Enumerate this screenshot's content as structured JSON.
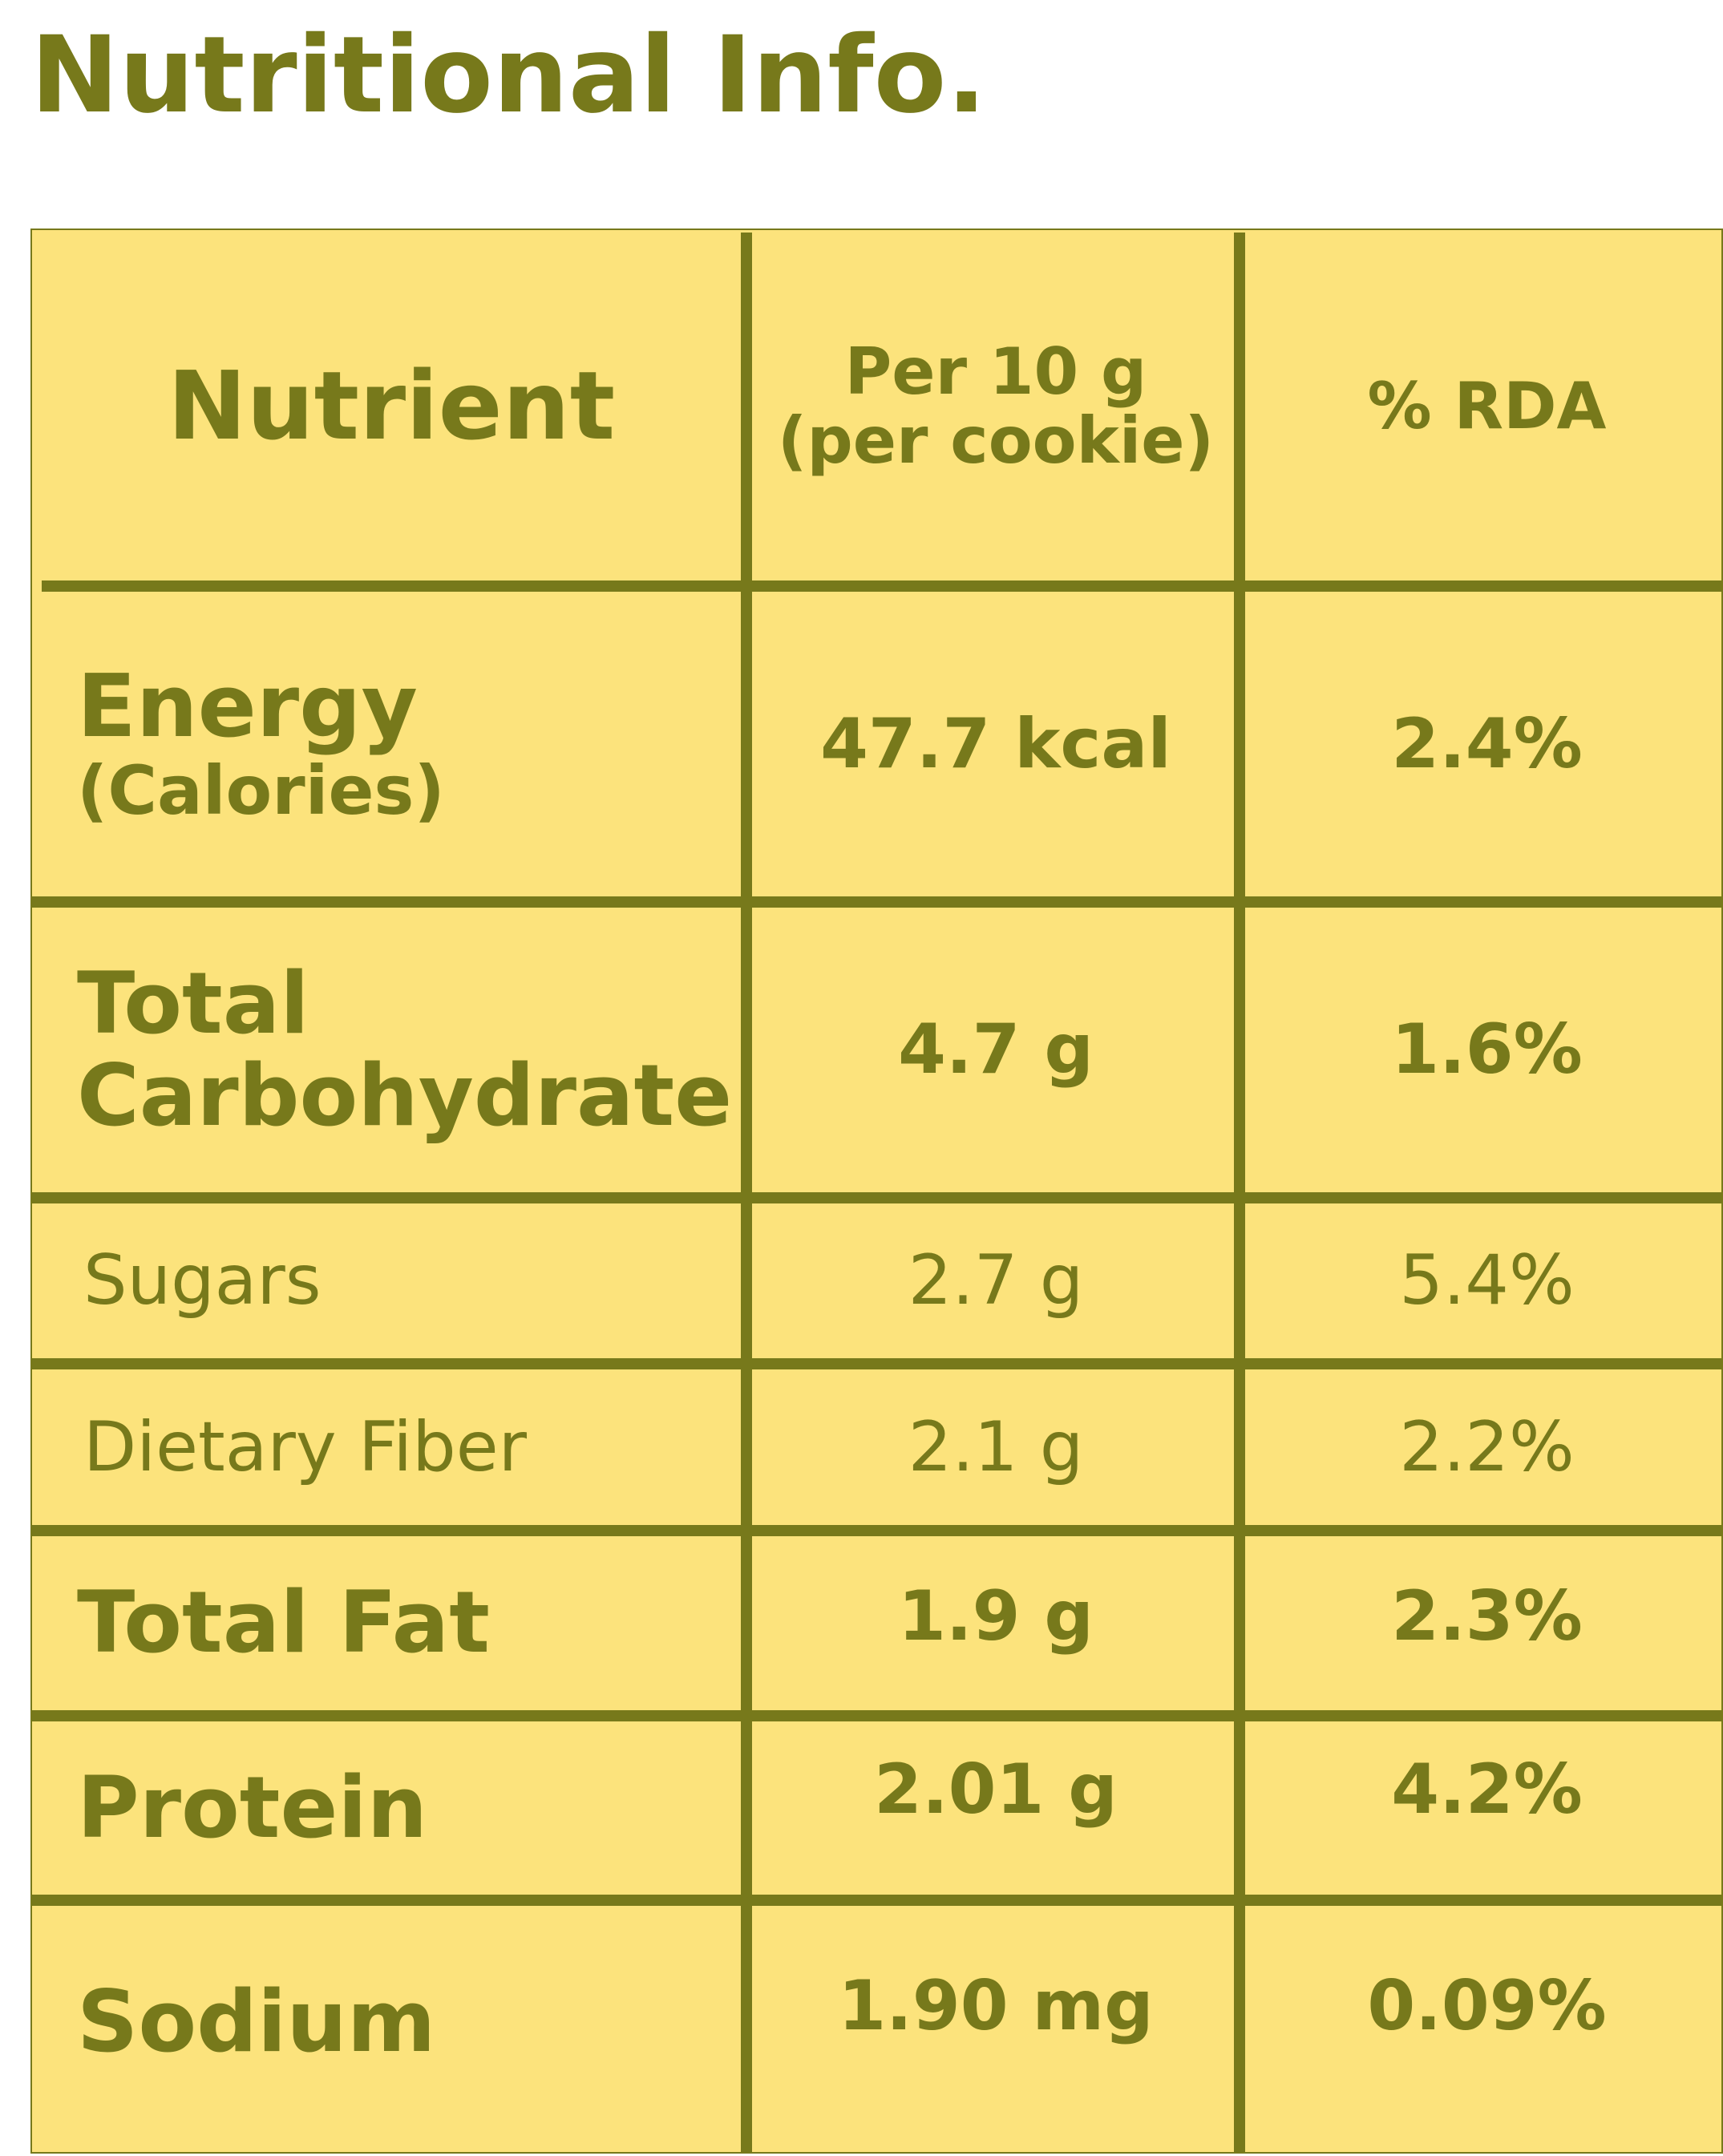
{
  "title": "Nutritional Info.",
  "colors": {
    "accent": "#77791b",
    "panel": "#fce37c",
    "background": "#ffffff"
  },
  "table": {
    "headers": {
      "nutrient": "Nutrient",
      "per_line1": "Per 10 g",
      "per_line2": "(per cookie)",
      "rda": "% RDA"
    },
    "rows": [
      {
        "name": "Energy",
        "sub": "(Calories)",
        "value": "47.7 kcal",
        "rda": "2.4%"
      },
      {
        "name_line1": "Total",
        "name_line2": "Carbohydrate",
        "value": "4.7 g",
        "rda": "1.6%"
      },
      {
        "name": "Sugars",
        "value": "2.7 g",
        "rda": "5.4%"
      },
      {
        "name": "Dietary Fiber",
        "value": "2.1 g",
        "rda": "2.2%"
      },
      {
        "name": "Total Fat",
        "value": "1.9 g",
        "rda": "2.3%"
      },
      {
        "name": "Protein",
        "value": "2.01 g",
        "rda": "4.2%"
      },
      {
        "name": "Sodium",
        "value": "1.90 mg",
        "rda": "0.09%"
      }
    ]
  }
}
